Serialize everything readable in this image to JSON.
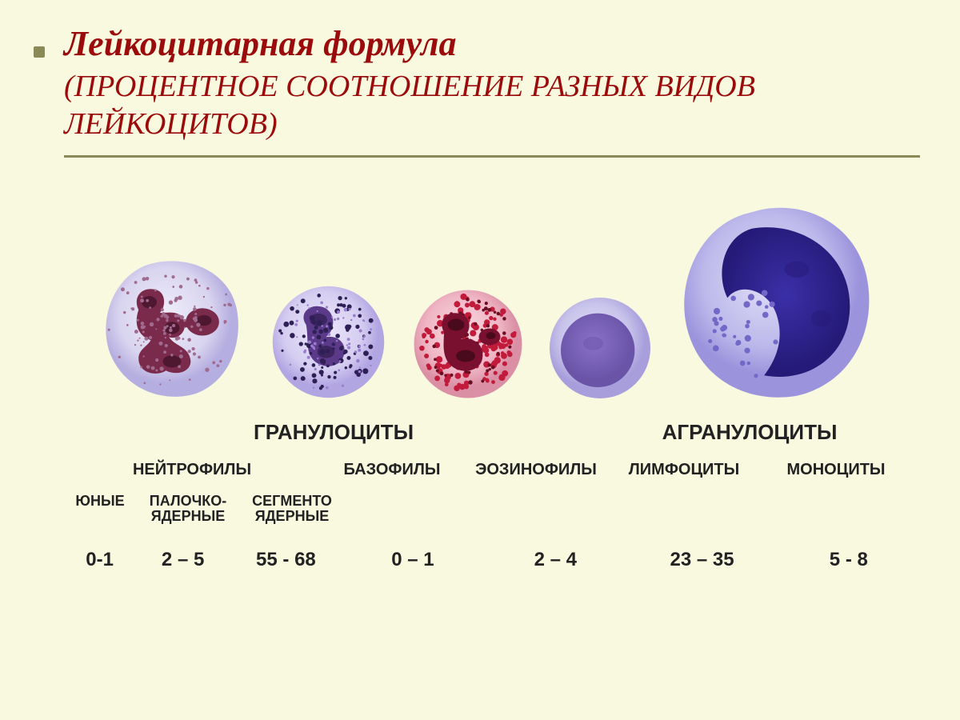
{
  "colors": {
    "background": "#f9f9e0",
    "title": "#9c0b0b",
    "rule": "#8a8a56",
    "text": "#222222",
    "bullet": "#8a8a56"
  },
  "title": {
    "text": "Лейкоцитарная  формула",
    "fontsize": 44
  },
  "subtitle": {
    "line1_open": "(П",
    "line1_rest": "роцентное соотношение разных видов",
    "line2_rest": "лейкоцитов",
    "line2_close": ")",
    "fontsize": 38
  },
  "groups": {
    "granulocytes": "Гранулоциты",
    "agranulocytes": "Агранулоциты",
    "fontsize": 26
  },
  "cell_types": {
    "neutrophils": "Нейтрофилы",
    "basophils": "Базофилы",
    "eosinophils": "Эозинофилы",
    "lymphocytes": "Лимфоциты",
    "monocytes": "Моноциты",
    "fontsize": 20,
    "widths": {
      "neutro": 320,
      "baso": 180,
      "eosino": 180,
      "lympho": 190,
      "mono": 190
    }
  },
  "neutrophil_subtypes": {
    "young": "Юные",
    "band_line1": "Палочко-",
    "band_line2": "ядерные",
    "segmented_line1": "Сегменто",
    "segmented_line2": "ядерные",
    "fontsize": 18,
    "widths": {
      "young": 90,
      "band": 130,
      "seg": 130
    }
  },
  "values": {
    "young": "0-1",
    "band": "2 – 5",
    "segmented": "55 - 68",
    "basophils": "0 – 1",
    "eosinophils": "2 – 4",
    "lymphocytes": "23 – 35",
    "monocytes": "5 - 8",
    "fontsize": 24,
    "widths": {
      "young": 90,
      "band": 120,
      "seg": 140,
      "baso": 180,
      "eosino": 180,
      "lympho": 190,
      "mono": 180
    }
  },
  "cells": {
    "neutrophil": {
      "size": 190,
      "cytoplasm": "#d9d4ef",
      "cytoplasm_edge": "#b5aee0",
      "nucleus": "#7a2a4a",
      "nucleus_dark": "#4d1830",
      "granule": "#a06b8f"
    },
    "basophil": {
      "size": 155,
      "cytoplasm": "#d4cdf0",
      "cytoplasm_edge": "#b1a5e2",
      "nucleus": "#5b3a8a",
      "nucleus_dark": "#3d2560",
      "granule_dark": "#2e1f55",
      "granule_light": "#9a7dcf"
    },
    "eosinophil": {
      "size": 150,
      "cytoplasm": "#efb5c4",
      "cytoplasm_edge": "#da8fa4",
      "nucleus": "#7a1030",
      "nucleus_dark": "#4a0a1d",
      "granule_red": "#c21a3a",
      "granule_dark": "#6d0d22"
    },
    "lymphocyte": {
      "size": 140,
      "cytoplasm": "#c7c2ea",
      "cytoplasm_edge": "#a79edb",
      "nucleus": "#8a72c7",
      "nucleus_dark": "#6a54a8"
    },
    "monocyte": {
      "size": 255,
      "cytoplasm": "#bcb8ea",
      "cytoplasm_edge": "#9b93dc",
      "nucleus": "#3b2fa8",
      "nucleus_dark": "#251a78",
      "granule": "#7268c8"
    },
    "slot_widths": {
      "neutro": 210,
      "baso": 180,
      "eosino": 170,
      "lympho": 160,
      "mono": 280
    }
  }
}
